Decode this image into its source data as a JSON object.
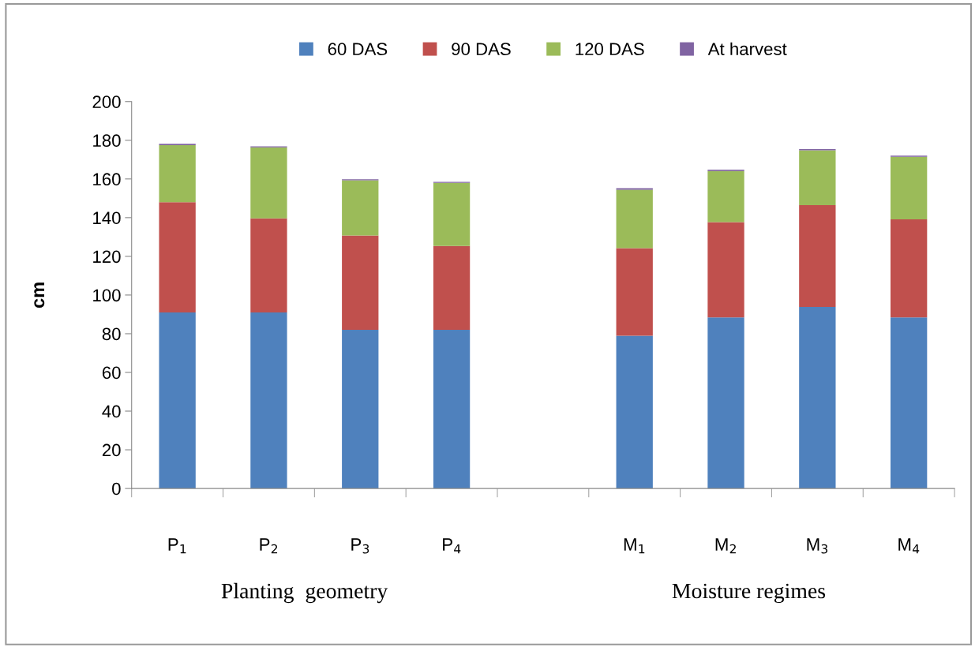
{
  "chart_data": {
    "type": "bar",
    "stacked": true,
    "ylabel": "cm",
    "categories": [
      "P$_{1}$",
      "P$_{2}$",
      "P$_{3}$",
      "P$_{4}$",
      null,
      "M$_{1}$",
      "M$_{2}$",
      "M$_{3}$",
      "M$_{4}$"
    ],
    "series": [
      {
        "name": "60 DAS",
        "color": "#4f81bd",
        "values": [
          91,
          91,
          82,
          82,
          null,
          79,
          88.4,
          93.8,
          88.4
        ]
      },
      {
        "name": "90 DAS",
        "color": "#c0504d",
        "values": [
          57,
          48.6,
          48.8,
          43.4,
          null,
          45.2,
          49.3,
          52.7,
          50.7
        ]
      },
      {
        "name": "120 DAS",
        "color": "#9bbb59",
        "values": [
          29.5,
          36.7,
          28.5,
          32.6,
          null,
          30.2,
          26.4,
          28.3,
          32.3
        ]
      },
      {
        "name": "At harvest",
        "color": "#8064a2",
        "values": [
          0.7,
          0.5,
          0.5,
          0.5,
          null,
          0.8,
          0.7,
          0.6,
          0.7
        ]
      }
    ],
    "ylim": [
      0,
      200
    ],
    "yticks": [
      0,
      20,
      40,
      60,
      80,
      100,
      120,
      140,
      160,
      180,
      200
    ],
    "grid": false,
    "legend": "top",
    "annotations": [
      "Planting  geometry",
      "Moisture regimes"
    ]
  }
}
